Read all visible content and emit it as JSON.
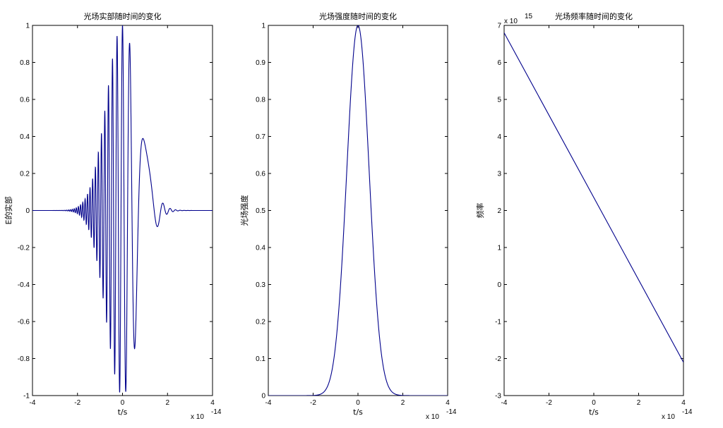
{
  "chart_data": [
    {
      "type": "line",
      "title": "光场实部随时间的变化",
      "xlabel": "t/s",
      "ylabel": "E的实部",
      "xlim": [
        -4e-14,
        4e-14
      ],
      "ylim": [
        -1,
        1
      ],
      "x_ticks": [
        "-4",
        "-2",
        "0",
        "2",
        "4"
      ],
      "y_ticks": [
        "-1",
        "-0.8",
        "-0.6",
        "-0.4",
        "-0.2",
        "0",
        "0.2",
        "0.4",
        "0.6",
        "0.8",
        "1"
      ],
      "x_exponent_label": "x 10",
      "x_exponent": "-14",
      "series": [
        {
          "function": "exp(-t^2/T^2)*cos(w0*t - b*t^2)",
          "T": 1e-14,
          "w0": 2330000000000000.0,
          "b": 1.1e+29,
          "t_range": [
            -4e-14,
            4e-14
          ],
          "color": "#00008b"
        }
      ]
    },
    {
      "type": "line",
      "title": "光场强度随时间的变化",
      "xlabel": "t/s",
      "ylabel": "光场强度",
      "xlim": [
        -4e-14,
        4e-14
      ],
      "ylim": [
        0,
        1
      ],
      "x_ticks": [
        "-4",
        "-2",
        "0",
        "2",
        "4"
      ],
      "y_ticks": [
        "0",
        "0.1",
        "0.2",
        "0.3",
        "0.4",
        "0.5",
        "0.6",
        "0.7",
        "0.8",
        "0.9",
        "1"
      ],
      "x_exponent_label": "x 10",
      "x_exponent": "-14",
      "series": [
        {
          "function": "exp(-2*t^2/T^2)",
          "T": 1e-14,
          "t_range": [
            -4e-14,
            4e-14
          ],
          "color": "#00008b"
        }
      ]
    },
    {
      "type": "line",
      "title": "光场频率随时间的变化",
      "xlabel": "t/s",
      "ylabel": "频率",
      "xlim": [
        -4e-14,
        4e-14
      ],
      "ylim": [
        -3000000000000000.0,
        7000000000000000.0
      ],
      "x_ticks": [
        "-4",
        "-2",
        "0",
        "2",
        "4"
      ],
      "y_ticks": [
        "-3",
        "-2",
        "-1",
        "0",
        "1",
        "2",
        "3",
        "4",
        "5",
        "6",
        "7"
      ],
      "x_exponent_label": "x 10",
      "x_exponent": "-14",
      "y_exponent_label": "x 10",
      "y_exponent": "15",
      "series": [
        {
          "x": [
            -4e-14,
            4e-14
          ],
          "y": [
            6800000000000000.0,
            -2100000000000000.0
          ],
          "color": "#00008b"
        }
      ]
    }
  ]
}
